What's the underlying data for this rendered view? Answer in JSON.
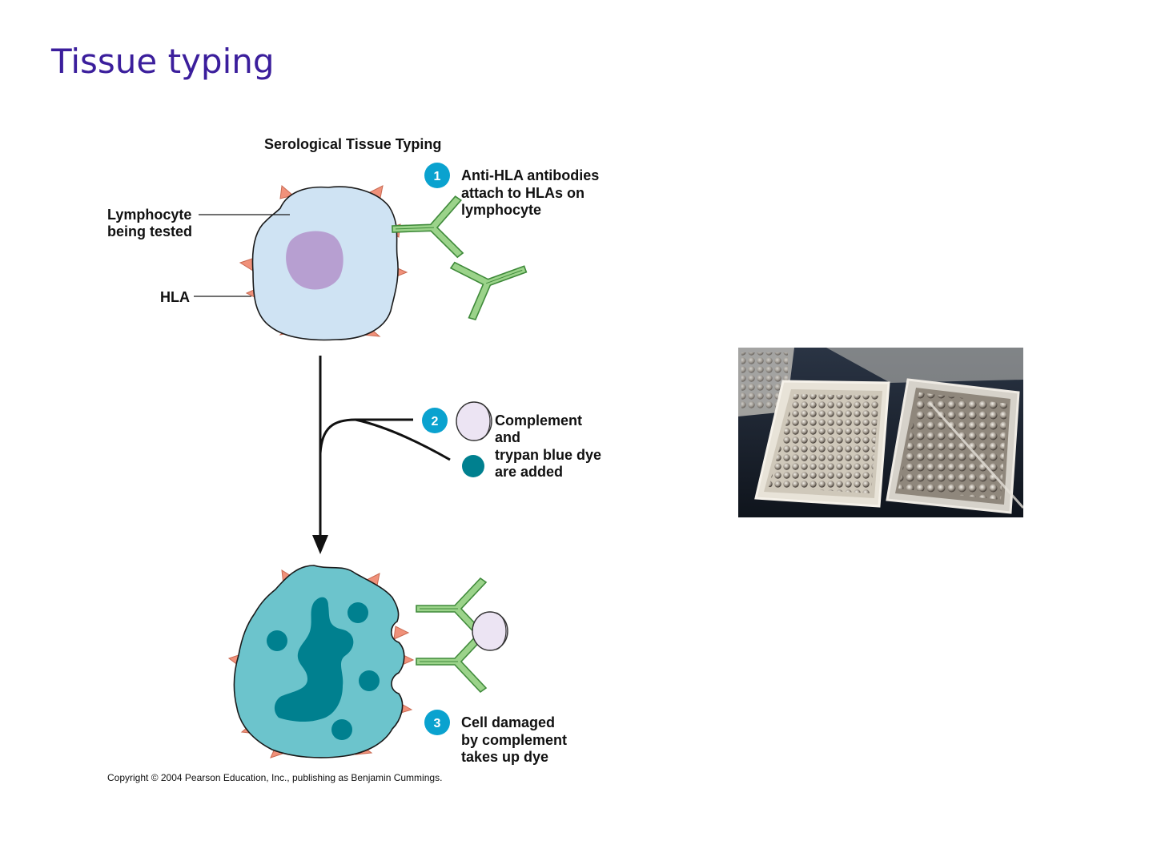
{
  "slide": {
    "title": "Tissue typing"
  },
  "diagram": {
    "title": "Serological Tissue Typing",
    "labels": {
      "lymphocyte": [
        "Lymphocyte",
        "being tested"
      ],
      "hla": "HLA"
    },
    "steps": [
      {
        "number": "1",
        "lines": [
          "Anti-HLA antibodies",
          "attach to HLAs on",
          "lymphocyte"
        ]
      },
      {
        "number": "2",
        "lines": [
          "Complement",
          "and",
          "trypan blue dye",
          "are added"
        ]
      },
      {
        "number": "3",
        "lines": [
          "Cell damaged",
          "by complement",
          "takes up dye"
        ]
      }
    ],
    "copyright": "Copyright © 2004 Pearson Education, Inc., publishing as Benjamin Cummings."
  },
  "photo": {
    "icon": "microtiter-plates-photo"
  },
  "colors": {
    "title": "#3b1e9c",
    "healthy_cell": "#cfe3f3",
    "nucleus": "#b79fd1",
    "damaged_cell": "#6cc4cc",
    "dye": "#00808f",
    "hla_spike": "#f0917a",
    "antibody": "#9bd38a",
    "step_badge": "#0aa2cf"
  }
}
